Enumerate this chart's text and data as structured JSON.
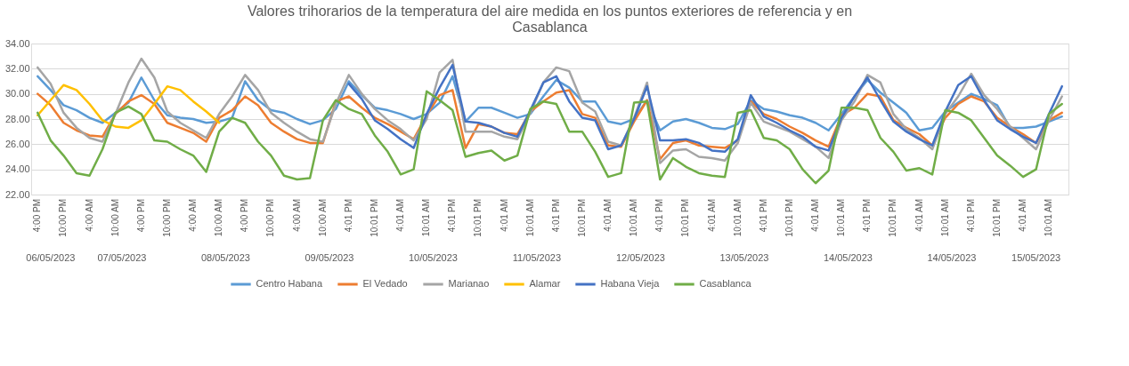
{
  "chart_data": {
    "type": "line",
    "title": "Valores trihorarios de la temperatura del aire medida en los puntos exteriores de referencia y en Casablanca",
    "categories": [
      "4:00 PM",
      null,
      "10:00 PM",
      null,
      "4:00 AM",
      null,
      "10:00 AM",
      null,
      "4:00 PM",
      null,
      "10:00 PM",
      null,
      "4:00 AM",
      null,
      "10:00 AM",
      null,
      "4:00 PM",
      null,
      "10:00 PM",
      null,
      "4:00 AM",
      null,
      "10:00 AM",
      null,
      "4:01 PM",
      null,
      "10:01 PM",
      null,
      "4:01 AM",
      null,
      "10:01 AM",
      null,
      "4:01 PM",
      null,
      "10:01 PM",
      null,
      "4:01 AM",
      null,
      "10:01 AM",
      null,
      "4:01 PM",
      null,
      "10:01 PM",
      null,
      "4:01 AM",
      null,
      "10:01 AM",
      null,
      "4:01 PM",
      null,
      "10:01 PM",
      null,
      "4:01 AM",
      null,
      "10:01 AM",
      null,
      "4:01 PM",
      null,
      "10:01 PM",
      null,
      "4:01 AM",
      null,
      "10:01 AM",
      null,
      "4:01 PM",
      null,
      "10:01 PM",
      null,
      "4:01 AM",
      null,
      "10:01 AM",
      null,
      "4:01 PM",
      null,
      "10:01 PM",
      null,
      "4:01 AM",
      null,
      "10:01 AM",
      null
    ],
    "series": [
      {
        "name": "Centro Habana",
        "color": "#5b9bd5",
        "values": [
          31.4,
          30.3,
          29.1,
          28.7,
          28.1,
          27.7,
          28.5,
          29.3,
          31.3,
          29.5,
          28.3,
          28.1,
          28.0,
          27.7,
          27.8,
          28.1,
          31.0,
          29.5,
          28.7,
          28.5,
          28.0,
          27.6,
          27.9,
          28.8,
          31.0,
          29.9,
          28.9,
          28.7,
          28.4,
          28.0,
          28.4,
          29.3,
          31.4,
          27.8,
          28.9,
          28.9,
          28.5,
          28.1,
          28.4,
          29.8,
          31.1,
          30.5,
          29.4,
          29.4,
          27.8,
          27.6,
          28.0,
          29.5,
          27.1,
          27.8,
          28.0,
          27.7,
          27.3,
          27.2,
          27.6,
          29.5,
          28.8,
          28.6,
          28.3,
          28.1,
          27.7,
          27.1,
          28.4,
          29.8,
          31.1,
          30.1,
          29.3,
          28.5,
          27.1,
          27.3,
          28.6,
          29.3,
          30.0,
          29.6,
          29.1,
          27.3,
          27.3,
          27.4,
          27.8,
          28.2
        ]
      },
      {
        "name": "El Vedado",
        "color": "#ed7d31",
        "values": [
          30.0,
          29.1,
          27.7,
          27.1,
          26.7,
          26.6,
          28.4,
          29.4,
          29.9,
          29.2,
          27.7,
          27.3,
          26.9,
          26.2,
          28.1,
          28.7,
          29.8,
          29.1,
          27.7,
          27.0,
          26.4,
          26.1,
          26.1,
          29.4,
          29.8,
          28.9,
          28.1,
          27.6,
          27.0,
          26.4,
          28.3,
          29.9,
          30.3,
          25.7,
          27.6,
          27.4,
          26.9,
          26.8,
          28.6,
          29.4,
          30.1,
          30.3,
          28.4,
          28.1,
          25.9,
          25.8,
          27.8,
          29.5,
          24.8,
          26.1,
          26.3,
          25.9,
          25.8,
          25.7,
          26.3,
          29.4,
          28.4,
          28.0,
          27.4,
          26.9,
          26.3,
          25.8,
          28.3,
          28.9,
          30.0,
          29.8,
          27.9,
          27.3,
          26.8,
          25.9,
          28.1,
          29.2,
          29.8,
          29.4,
          28.1,
          27.4,
          26.8,
          26.1,
          27.9,
          28.5
        ]
      },
      {
        "name": "Marianao",
        "color": "#a5a5a5",
        "values": [
          32.1,
          30.8,
          28.5,
          27.3,
          26.5,
          26.2,
          28.4,
          30.9,
          32.8,
          31.3,
          28.6,
          27.7,
          27.1,
          26.5,
          28.4,
          29.8,
          31.5,
          30.3,
          28.5,
          27.7,
          27.0,
          26.4,
          26.2,
          29.2,
          31.5,
          30.0,
          28.8,
          27.9,
          27.2,
          26.3,
          28.0,
          31.7,
          32.7,
          27.0,
          27.0,
          27.0,
          26.6,
          26.4,
          28.5,
          30.9,
          32.1,
          31.8,
          29.3,
          28.6,
          26.2,
          25.9,
          28.1,
          30.9,
          24.5,
          25.5,
          25.6,
          25.0,
          24.9,
          24.7,
          26.1,
          29.3,
          27.8,
          27.4,
          27.0,
          26.4,
          25.8,
          24.9,
          27.9,
          29.4,
          31.5,
          30.9,
          28.4,
          27.2,
          26.5,
          25.6,
          28.4,
          29.8,
          31.6,
          29.9,
          28.8,
          27.4,
          26.5,
          25.6,
          27.9,
          29.8
        ]
      },
      {
        "name": "Alamar",
        "color": "#ffc000",
        "values": [
          28.3,
          29.5,
          30.7,
          30.3,
          29.2,
          27.9,
          27.4,
          27.3,
          27.9,
          29.2,
          30.6,
          30.3,
          29.4,
          28.6,
          27.7,
          null,
          null,
          null,
          null,
          null,
          null,
          null,
          null,
          null,
          null,
          null,
          null,
          null,
          null,
          null,
          null,
          null,
          null,
          null,
          null,
          null,
          null,
          null,
          null,
          null,
          null,
          null,
          null,
          null,
          null,
          null,
          null,
          null,
          null,
          null,
          null,
          null,
          null,
          null,
          null,
          null,
          null,
          null,
          null,
          null,
          null,
          null,
          null,
          null,
          null,
          null,
          null,
          null,
          null,
          null,
          null,
          null,
          null,
          null,
          null,
          null,
          null,
          null,
          null,
          null
        ]
      },
      {
        "name": "Habana Vieja",
        "color": "#4472c4",
        "values": [
          null,
          null,
          null,
          null,
          null,
          null,
          null,
          null,
          null,
          null,
          null,
          null,
          null,
          null,
          null,
          null,
          null,
          null,
          null,
          null,
          null,
          null,
          null,
          null,
          30.8,
          29.6,
          27.9,
          27.2,
          26.4,
          25.7,
          28.4,
          30.5,
          32.3,
          27.8,
          27.7,
          27.4,
          26.9,
          26.6,
          28.7,
          30.9,
          31.4,
          29.4,
          28.1,
          27.9,
          25.6,
          25.9,
          28.0,
          30.6,
          26.3,
          26.3,
          26.4,
          26.1,
          25.5,
          25.4,
          26.4,
          29.9,
          28.2,
          27.7,
          27.1,
          26.6,
          25.8,
          25.5,
          28.1,
          29.8,
          31.3,
          29.5,
          27.8,
          27.0,
          26.4,
          25.9,
          28.6,
          30.7,
          31.4,
          29.5,
          27.9,
          27.2,
          26.6,
          26.1,
          28.4,
          30.6
        ]
      },
      {
        "name": "Casablanca",
        "color": "#70ad47",
        "values": [
          28.5,
          26.3,
          25.1,
          23.7,
          23.5,
          25.6,
          28.5,
          29.0,
          28.4,
          26.3,
          26.2,
          25.6,
          25.1,
          23.8,
          27.0,
          28.1,
          27.7,
          26.2,
          25.1,
          23.5,
          23.2,
          23.3,
          27.9,
          29.5,
          28.8,
          28.4,
          26.7,
          25.4,
          23.6,
          24.0,
          30.2,
          29.5,
          28.7,
          25.0,
          25.3,
          25.5,
          24.7,
          25.1,
          28.8,
          29.4,
          29.2,
          27.0,
          27.0,
          25.4,
          23.4,
          23.7,
          29.3,
          29.4,
          23.2,
          24.9,
          24.2,
          23.7,
          23.5,
          23.4,
          28.5,
          28.7,
          26.5,
          26.3,
          25.6,
          24.0,
          22.9,
          23.9,
          28.9,
          28.9,
          28.7,
          26.5,
          25.4,
          23.9,
          24.1,
          23.6,
          28.7,
          28.5,
          27.9,
          26.5,
          25.1,
          24.3,
          23.4,
          24.0,
          28.4,
          29.2
        ]
      }
    ],
    "ylim": [
      22,
      34
    ],
    "yticks": [
      {
        "value": 22,
        "label": "22.00"
      },
      {
        "value": 24,
        "label": "24.00"
      },
      {
        "value": 26,
        "label": "26.00"
      },
      {
        "value": 28,
        "label": "28.00"
      },
      {
        "value": 30,
        "label": "30.00"
      },
      {
        "value": 32,
        "label": "32.00"
      },
      {
        "value": 34,
        "label": "34.00"
      }
    ],
    "grid": "y",
    "legend": "bottom",
    "marker": "none",
    "line_style": "solid",
    "annotations": [
      "06/05/2023",
      "07/05/2023",
      "08/05/2023",
      "09/05/2023",
      "10/05/2023",
      "11/05/2023",
      "12/05/2023",
      "13/05/2023",
      "14/05/2023",
      "14/05/2023",
      "15/05/2023"
    ]
  }
}
